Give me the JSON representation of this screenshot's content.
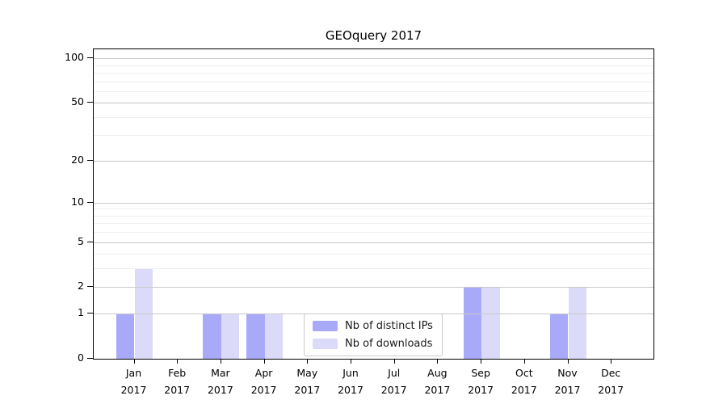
{
  "chart_data": {
    "type": "bar",
    "title": "GEOquery 2017",
    "xlabel": "",
    "ylabel": "",
    "categories": [
      "Jan 2017",
      "Feb 2017",
      "Mar 2017",
      "Apr 2017",
      "May 2017",
      "Jun 2017",
      "Jul 2017",
      "Aug 2017",
      "Sep 2017",
      "Oct 2017",
      "Nov 2017",
      "Dec 2017"
    ],
    "series": [
      {
        "name": "Nb of distinct IPs",
        "color": "#a9a9fa",
        "values": [
          1,
          0,
          1,
          1,
          0,
          0,
          0,
          0,
          2,
          0,
          1,
          0
        ]
      },
      {
        "name": "Nb of downloads",
        "color": "#dbdbf9",
        "values": [
          3,
          0,
          1,
          1,
          0,
          0,
          0,
          0,
          2,
          0,
          2,
          0
        ]
      }
    ],
    "yscale": "log1p",
    "ylim": [
      0,
      115
    ],
    "yticks": [
      0,
      1,
      2,
      5,
      10,
      20,
      50,
      100
    ],
    "minor_gridlines": [
      3,
      4,
      6,
      7,
      8,
      9,
      30,
      40,
      60,
      70,
      80,
      90
    ],
    "grid": true,
    "legend_position": "lower center inside",
    "colors": {
      "grid_major": "#c9c9c9",
      "grid_minor": "#efefef",
      "axis": "#000000",
      "legend_border": "#cccccc",
      "background": "#ffffff"
    }
  }
}
